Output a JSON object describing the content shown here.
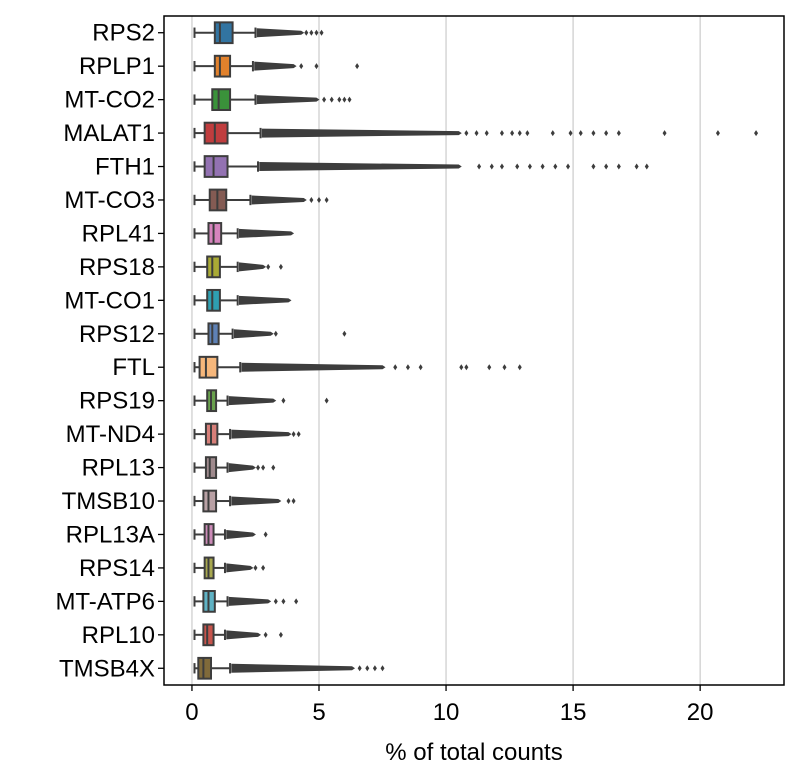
{
  "chart_data": {
    "type": "box",
    "orientation": "horizontal",
    "title": "",
    "xlabel": "% of total counts",
    "ylabel": "",
    "xlim": [
      -1.1,
      23.3
    ],
    "xticks": [
      0,
      5,
      10,
      15,
      20
    ],
    "grid": "vertical",
    "legend": "none",
    "categories": [
      "RPS2",
      "RPLP1",
      "MT-CO2",
      "MALAT1",
      "FTH1",
      "MT-CO3",
      "RPL41",
      "RPS18",
      "MT-CO1",
      "RPS12",
      "FTL",
      "RPS19",
      "MT-ND4",
      "RPL13",
      "TMSB10",
      "RPL13A",
      "RPS14",
      "MT-ATP6",
      "RPL10",
      "TMSB4X"
    ],
    "series": [
      {
        "category": "RPS2",
        "color": "#3274a1",
        "min": 0.1,
        "q1": 0.9,
        "median": 1.1,
        "q3": 1.6,
        "whisker_high": 2.5,
        "fliers_dense_to": 4.3,
        "fliers": [
          4.5,
          4.7,
          4.9,
          5.1
        ]
      },
      {
        "category": "RPLP1",
        "color": "#e1812c",
        "min": 0.1,
        "q1": 0.9,
        "median": 1.1,
        "q3": 1.5,
        "whisker_high": 2.4,
        "fliers_dense_to": 4.0,
        "fliers": [
          4.3,
          4.9,
          6.5
        ]
      },
      {
        "category": "MT-CO2",
        "color": "#3a923a",
        "min": 0.1,
        "q1": 0.8,
        "median": 1.05,
        "q3": 1.5,
        "whisker_high": 2.5,
        "fliers_dense_to": 4.9,
        "fliers": [
          5.2,
          5.5,
          5.8,
          6.0,
          6.2
        ]
      },
      {
        "category": "MALAT1",
        "color": "#c03d3e",
        "min": 0.1,
        "q1": 0.5,
        "median": 0.9,
        "q3": 1.4,
        "whisker_high": 2.7,
        "fliers_dense_to": 10.5,
        "fliers": [
          10.8,
          11.2,
          11.6,
          12.2,
          12.6,
          12.9,
          13.2,
          14.2,
          14.9,
          15.3,
          15.8,
          16.3,
          16.8,
          18.6,
          20.7,
          22.2
        ]
      },
      {
        "category": "FTH1",
        "color": "#9372b2",
        "min": 0.1,
        "q1": 0.5,
        "median": 0.85,
        "q3": 1.4,
        "whisker_high": 2.6,
        "fliers_dense_to": 10.5,
        "fliers": [
          11.3,
          11.8,
          12.2,
          12.8,
          13.3,
          13.8,
          14.3,
          14.8,
          15.8,
          16.3,
          16.8,
          17.5,
          17.9
        ]
      },
      {
        "category": "MT-CO3",
        "color": "#845b53",
        "min": 0.1,
        "q1": 0.7,
        "median": 1.0,
        "q3": 1.35,
        "whisker_high": 2.3,
        "fliers_dense_to": 4.4,
        "fliers": [
          4.7,
          5.0,
          5.3
        ]
      },
      {
        "category": "RPL41",
        "color": "#d684bd",
        "min": 0.1,
        "q1": 0.65,
        "median": 0.85,
        "q3": 1.15,
        "whisker_high": 1.8,
        "fliers_dense_to": 3.9,
        "fliers": []
      },
      {
        "category": "RPS18",
        "color": "#a9aa35",
        "min": 0.1,
        "q1": 0.6,
        "median": 0.8,
        "q3": 1.1,
        "whisker_high": 1.8,
        "fliers_dense_to": 2.8,
        "fliers": [
          3.0,
          3.5
        ]
      },
      {
        "category": "MT-CO1",
        "color": "#2e9fb1",
        "min": 0.1,
        "q1": 0.6,
        "median": 0.8,
        "q3": 1.1,
        "whisker_high": 1.8,
        "fliers_dense_to": 3.8,
        "fliers": []
      },
      {
        "category": "RPS12",
        "color": "#5e81b5",
        "min": 0.1,
        "q1": 0.65,
        "median": 0.8,
        "q3": 1.05,
        "whisker_high": 1.6,
        "fliers_dense_to": 3.1,
        "fliers": [
          3.3,
          6.0
        ]
      },
      {
        "category": "FTL",
        "color": "#f6b77b",
        "min": 0.1,
        "q1": 0.3,
        "median": 0.55,
        "q3": 1.0,
        "whisker_high": 1.9,
        "fliers_dense_to": 7.5,
        "fliers": [
          8.0,
          8.5,
          9.0,
          10.6,
          10.8,
          11.7,
          12.3,
          12.9
        ]
      },
      {
        "category": "RPS19",
        "color": "#69a14c",
        "min": 0.1,
        "q1": 0.6,
        "median": 0.75,
        "q3": 0.95,
        "whisker_high": 1.4,
        "fliers_dense_to": 3.2,
        "fliers": [
          3.6,
          5.3
        ]
      },
      {
        "category": "MT-ND4",
        "color": "#d77f79",
        "min": 0.1,
        "q1": 0.55,
        "median": 0.75,
        "q3": 1.0,
        "whisker_high": 1.5,
        "fliers_dense_to": 3.8,
        "fliers": [
          4.0,
          4.2
        ]
      },
      {
        "category": "RPL13",
        "color": "#9f8a8d",
        "min": 0.1,
        "q1": 0.55,
        "median": 0.7,
        "q3": 0.95,
        "whisker_high": 1.4,
        "fliers_dense_to": 2.4,
        "fliers": [
          2.6,
          2.8,
          3.2
        ]
      },
      {
        "category": "TMSB10",
        "color": "#b8a0a4",
        "min": 0.1,
        "q1": 0.45,
        "median": 0.65,
        "q3": 0.95,
        "whisker_high": 1.5,
        "fliers_dense_to": 3.4,
        "fliers": [
          3.8,
          4.0
        ]
      },
      {
        "category": "RPL13A",
        "color": "#cc8bb8",
        "min": 0.1,
        "q1": 0.5,
        "median": 0.65,
        "q3": 0.85,
        "whisker_high": 1.3,
        "fliers_dense_to": 2.4,
        "fliers": [
          2.9
        ]
      },
      {
        "category": "RPS14",
        "color": "#a8a84f",
        "min": 0.1,
        "q1": 0.5,
        "median": 0.65,
        "q3": 0.85,
        "whisker_high": 1.3,
        "fliers_dense_to": 2.3,
        "fliers": [
          2.5,
          2.8
        ]
      },
      {
        "category": "MT-ATP6",
        "color": "#5fb2c4",
        "min": 0.1,
        "q1": 0.45,
        "median": 0.65,
        "q3": 0.9,
        "whisker_high": 1.4,
        "fliers_dense_to": 3.0,
        "fliers": [
          3.3,
          3.6,
          4.1
        ]
      },
      {
        "category": "RPL10",
        "color": "#c7544c",
        "min": 0.1,
        "q1": 0.45,
        "median": 0.6,
        "q3": 0.85,
        "whisker_high": 1.3,
        "fliers_dense_to": 2.6,
        "fliers": [
          2.9,
          3.5
        ]
      },
      {
        "category": "TMSB4X",
        "color": "#806a3a",
        "min": 0.1,
        "q1": 0.25,
        "median": 0.45,
        "q3": 0.75,
        "whisker_high": 1.5,
        "fliers_dense_to": 6.3,
        "fliers": [
          6.6,
          6.9,
          7.2,
          7.5
        ]
      }
    ]
  }
}
